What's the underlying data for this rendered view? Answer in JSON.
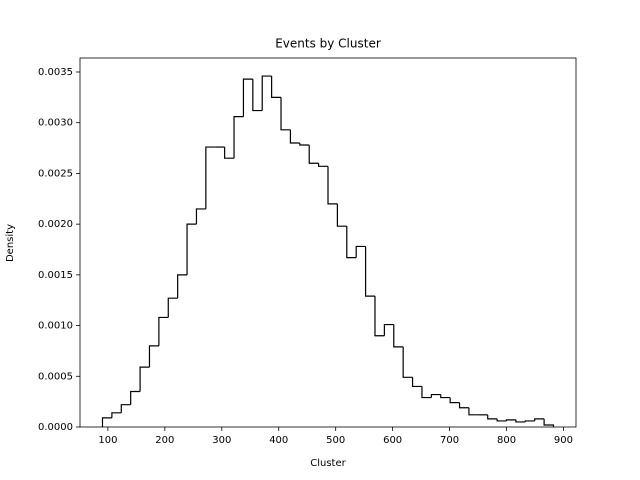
{
  "chart_data": {
    "type": "histogram",
    "title": "Events by Cluster",
    "xlabel": "Cluster",
    "ylabel": "Density",
    "bins": [
      90.5,
      107,
      123.5,
      140,
      156.5,
      173,
      189.5,
      206,
      222.5,
      239,
      255.5,
      272,
      288.5,
      305,
      321.5,
      338,
      354.5,
      371,
      387.5,
      404,
      420.5,
      437,
      453.5,
      470,
      486.5,
      503,
      519.5,
      536,
      552.5,
      569,
      585.5,
      602,
      618.5,
      635,
      651.5,
      668,
      684.5,
      701,
      717.5,
      734,
      750.5,
      767,
      783.5,
      800,
      816.5,
      833,
      849.5,
      866,
      882.5
    ],
    "values": [
      9e-05,
      0.00014,
      0.00022,
      0.00035,
      0.00059,
      0.0008,
      0.00108,
      0.00127,
      0.0015,
      0.002,
      0.00215,
      0.00276,
      0.00276,
      0.00265,
      0.00306,
      0.00343,
      0.00312,
      0.00346,
      0.00325,
      0.00293,
      0.0028,
      0.00278,
      0.0026,
      0.00257,
      0.0022,
      0.00198,
      0.00167,
      0.00178,
      0.00129,
      0.0009,
      0.00101,
      0.00079,
      0.00049,
      0.0004,
      0.00029,
      0.00032,
      0.00029,
      0.00024,
      0.00019,
      0.00012,
      0.00012,
      8e-05,
      6e-05,
      7e-05,
      5e-05,
      6e-05,
      8e-05,
      2e-05
    ],
    "color": "#000000",
    "xlim": [
      51,
      922
    ],
    "ylim": [
      0,
      0.003638
    ],
    "xticks": [
      100,
      200,
      300,
      400,
      500,
      600,
      700,
      800,
      900
    ],
    "yticks": [
      {
        "value": 0,
        "label": "0.0000"
      },
      {
        "value": 0.0005,
        "label": "0.0005"
      },
      {
        "value": 0.001,
        "label": "0.0010"
      },
      {
        "value": 0.0015,
        "label": "0.0015"
      },
      {
        "value": 0.002,
        "label": "0.0020"
      },
      {
        "value": 0.0025,
        "label": "0.0025"
      },
      {
        "value": 0.003,
        "label": "0.0030"
      },
      {
        "value": 0.0035,
        "label": "0.0035"
      }
    ]
  }
}
